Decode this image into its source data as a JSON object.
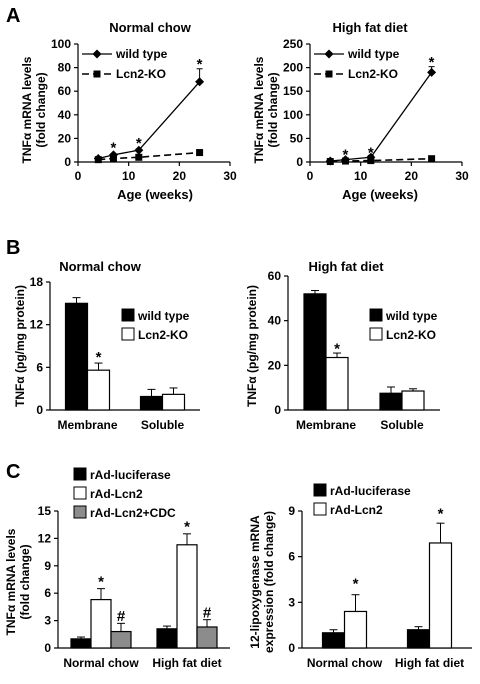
{
  "panels": {
    "A": {
      "letter": "A"
    },
    "B": {
      "letter": "B"
    },
    "C": {
      "letter": "C"
    }
  },
  "chart_data": [
    {
      "id": "A1",
      "panel": "A",
      "type": "line",
      "title": "Normal chow",
      "ylabel_lines": [
        "TNFα mRNA levels",
        "(fold change)"
      ],
      "xlabel": "Age (weeks)",
      "xlim": [
        0,
        30
      ],
      "xticks": [
        0,
        10,
        20,
        30
      ],
      "ylim": [
        0,
        100
      ],
      "yticks": [
        0,
        20,
        40,
        60,
        80,
        100
      ],
      "legend": "top-left",
      "series": [
        {
          "name": "wild type",
          "style": "solid",
          "marker": "diamond",
          "x": [
            4,
            7,
            12,
            24
          ],
          "y": [
            3,
            6,
            10,
            68
          ],
          "err": [
            0.5,
            1,
            1,
            11
          ]
        },
        {
          "name": "Lcn2-KO",
          "style": "dashed",
          "marker": "square",
          "x": [
            4,
            7,
            12,
            24
          ],
          "y": [
            2,
            3,
            4,
            8
          ],
          "err": [
            0.5,
            0.5,
            0.5,
            1
          ]
        }
      ],
      "annotations": [
        {
          "text": "*",
          "x": 7,
          "y": 13
        },
        {
          "text": "*",
          "x": 12,
          "y": 17
        },
        {
          "text": "*",
          "x": 24,
          "y": 84
        }
      ]
    },
    {
      "id": "A2",
      "panel": "A",
      "type": "line",
      "title": "High fat diet",
      "ylabel_lines": [
        "TNFα mRNA levels",
        "(fold change)"
      ],
      "xlabel": "Age (weeks)",
      "xlim": [
        0,
        30
      ],
      "xticks": [
        0,
        10,
        20,
        30
      ],
      "ylim": [
        0,
        250
      ],
      "yticks": [
        0,
        50,
        100,
        150,
        200,
        250
      ],
      "legend": "top-left",
      "series": [
        {
          "name": "wild type",
          "style": "solid",
          "marker": "diamond",
          "x": [
            4,
            7,
            12,
            24
          ],
          "y": [
            2,
            5,
            10,
            190
          ],
          "err": [
            1,
            2,
            4,
            12
          ]
        },
        {
          "name": "Lcn2-KO",
          "style": "dashed",
          "marker": "square",
          "x": [
            4,
            7,
            12,
            24
          ],
          "y": [
            1,
            2,
            3,
            7
          ],
          "err": [
            0.5,
            0.5,
            1,
            1
          ]
        }
      ],
      "annotations": [
        {
          "text": "*",
          "x": 7,
          "y": 18
        },
        {
          "text": "*",
          "x": 12,
          "y": 22
        },
        {
          "text": "*",
          "x": 24,
          "y": 214
        }
      ]
    },
    {
      "id": "B1",
      "panel": "B",
      "type": "bar",
      "title": "Normal chow",
      "ylabel_lines": [
        "TNFα (pg/mg protein)"
      ],
      "ylim": [
        0,
        18
      ],
      "yticks": [
        0,
        6,
        12,
        18
      ],
      "categories": [
        "Membrane",
        "Soluble"
      ],
      "legend": "top-right",
      "series": [
        {
          "name": "wild type",
          "fill": "#000000",
          "values": [
            15,
            1.9
          ],
          "err": [
            0.8,
            1.0
          ]
        },
        {
          "name": "Lcn2-KO",
          "fill": "#ffffff",
          "values": [
            5.6,
            2.2
          ],
          "err": [
            1.0,
            0.9
          ]
        }
      ],
      "annotations": [
        {
          "text": "*",
          "category": 0,
          "series": 1,
          "y": 7.6
        }
      ]
    },
    {
      "id": "B2",
      "panel": "B",
      "type": "bar",
      "title": "High fat diet",
      "ylabel_lines": [
        "TNFα (pg/mg protein)"
      ],
      "ylim": [
        0,
        60
      ],
      "yticks": [
        0,
        20,
        40,
        60
      ],
      "categories": [
        "Membrane",
        "Soluble"
      ],
      "legend": "top-right",
      "series": [
        {
          "name": "wild type",
          "fill": "#000000",
          "values": [
            52,
            7.5
          ],
          "err": [
            1.5,
            2.8
          ]
        },
        {
          "name": "Lcn2-KO",
          "fill": "#ffffff",
          "values": [
            23.5,
            8.5
          ],
          "err": [
            2.0,
            1.0
          ]
        }
      ],
      "annotations": [
        {
          "text": "*",
          "category": 0,
          "series": 1,
          "y": 28
        }
      ]
    },
    {
      "id": "C1",
      "panel": "C",
      "type": "bar",
      "title": "",
      "ylabel_lines": [
        "TNFα mRNA levels",
        "(fold change)"
      ],
      "ylim": [
        0,
        15
      ],
      "yticks": [
        0,
        3,
        6,
        9,
        12,
        15
      ],
      "categories": [
        "Normal chow",
        "High fat diet"
      ],
      "legend": "top-left",
      "series": [
        {
          "name": "rAd-luciferase",
          "fill": "#000000",
          "values": [
            1.0,
            2.1
          ],
          "err": [
            0.2,
            0.3
          ]
        },
        {
          "name": "rAd-Lcn2",
          "fill": "#ffffff",
          "values": [
            5.3,
            11.3
          ],
          "err": [
            1.2,
            1.2
          ]
        },
        {
          "name": "rAd-Lcn2+CDC",
          "fill": "#8c8c8c",
          "values": [
            1.8,
            2.3
          ],
          "err": [
            0.9,
            0.8
          ]
        }
      ],
      "annotations": [
        {
          "text": "*",
          "category": 0,
          "series": 1,
          "y": 7.4
        },
        {
          "text": "#",
          "category": 0,
          "series": 2,
          "y": 3.6
        },
        {
          "text": "*",
          "category": 1,
          "series": 1,
          "y": 13.4
        },
        {
          "text": "#",
          "category": 1,
          "series": 2,
          "y": 4.0
        }
      ]
    },
    {
      "id": "C2",
      "panel": "C",
      "type": "bar",
      "title": "",
      "ylabel_lines": [
        "12-lipoxygenase mRNA",
        "expression (fold change)"
      ],
      "ylim": [
        0,
        9
      ],
      "yticks": [
        0,
        3,
        6,
        9
      ],
      "categories": [
        "Normal chow",
        "High fat diet"
      ],
      "legend": "top-left",
      "series": [
        {
          "name": "rAd-luciferase",
          "fill": "#000000",
          "values": [
            1.0,
            1.2
          ],
          "err": [
            0.2,
            0.2
          ]
        },
        {
          "name": "rAd-Lcn2",
          "fill": "#ffffff",
          "values": [
            2.4,
            6.9
          ],
          "err": [
            1.1,
            1.3
          ]
        }
      ],
      "annotations": [
        {
          "text": "*",
          "category": 0,
          "series": 1,
          "y": 4.3
        },
        {
          "text": "*",
          "category": 1,
          "series": 1,
          "y": 8.9
        }
      ]
    }
  ]
}
